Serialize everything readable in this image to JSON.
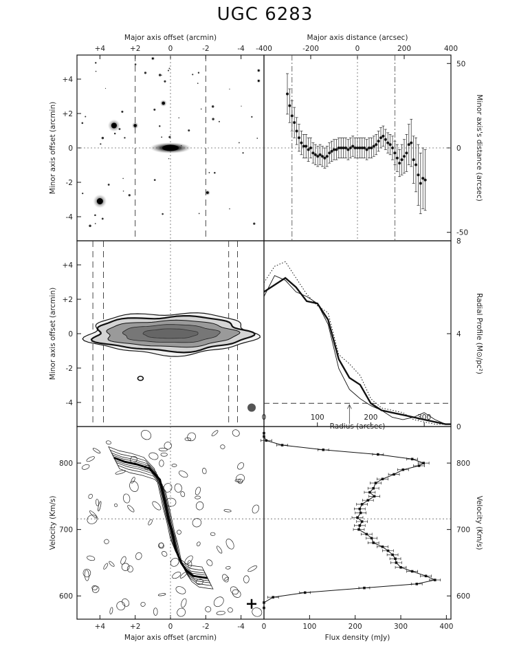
{
  "title": "UGC 6283",
  "chart_data": [
    {
      "id": "optical",
      "type": "image",
      "xlabel_top": "Major axis offset (arcmin)",
      "ylabel_left": "Minor axis offset (arcmin)",
      "xticks": [
        "+4",
        "+2",
        "0",
        "-2",
        "-4"
      ],
      "yticks": [
        "+4",
        "+2",
        "0",
        "-2",
        "-4"
      ],
      "xlim": [
        5.3,
        -5.3
      ],
      "ylim": [
        -5.4,
        5.4
      ]
    },
    {
      "id": "minor-axis-distance",
      "type": "scatter",
      "xlabel_top": "Major axis distance (arcsec)",
      "ylabel_right": "Minor axis's distance (arcsec)",
      "xticks": [
        "-400",
        "-200",
        "0",
        "200",
        "400"
      ],
      "yticks": [
        "50",
        "0",
        "-50"
      ],
      "xlim": [
        -400,
        400
      ],
      "ylim": [
        -55,
        55
      ],
      "x": [
        -300,
        -290,
        -280,
        -270,
        -260,
        -250,
        -240,
        -230,
        -220,
        -210,
        -200,
        -190,
        -180,
        -170,
        -160,
        -150,
        -140,
        -130,
        -120,
        -110,
        -100,
        -90,
        -80,
        -70,
        -60,
        -50,
        -40,
        -30,
        -20,
        -10,
        0,
        10,
        20,
        30,
        40,
        50,
        60,
        70,
        80,
        90,
        100,
        110,
        120,
        130,
        140,
        150,
        160,
        170,
        180,
        190,
        200,
        210,
        220,
        230,
        240,
        250,
        260,
        270,
        280,
        290
      ],
      "y": [
        32,
        25,
        19,
        15,
        10,
        6,
        3,
        1,
        1,
        -1,
        0,
        -3,
        -4,
        -5,
        -4,
        -5,
        -6,
        -5,
        -3,
        -2,
        -1,
        -1,
        0,
        0,
        0,
        0,
        -1,
        0,
        1,
        0,
        0,
        0,
        0,
        0,
        -1,
        0,
        0,
        1,
        2,
        4,
        6,
        7,
        5,
        3,
        2,
        0,
        -3,
        -6,
        -9,
        -7,
        -5,
        -3,
        2,
        3,
        -7,
        -10,
        -16,
        -21,
        -18,
        -19
      ],
      "err": [
        12,
        10,
        9,
        9,
        8,
        8,
        7,
        7,
        7,
        7,
        6,
        6,
        6,
        6,
        6,
        6,
        6,
        6,
        6,
        6,
        6,
        6,
        6,
        6,
        6,
        6,
        6,
        6,
        6,
        6,
        6,
        6,
        6,
        6,
        6,
        6,
        6,
        6,
        6,
        6,
        6,
        6,
        6,
        6,
        6,
        7,
        7,
        8,
        8,
        9,
        10,
        11,
        12,
        14,
        14,
        16,
        18,
        18,
        18,
        18
      ],
      "vlines_dotdash": [
        -280,
        160
      ],
      "vline_dotted": 0,
      "hline_dotted": 0
    },
    {
      "id": "hi-total-intensity",
      "type": "contour",
      "ylabel_left": "Minor axis offset (arcmin)",
      "yticks": [
        "+4",
        "+2",
        "0",
        "-2",
        "-4"
      ],
      "xlim": [
        5.3,
        -5.3
      ],
      "ylim": [
        -5.4,
        5.4
      ]
    },
    {
      "id": "radial-profile",
      "type": "line",
      "xlabel": "Radius (arcsec)",
      "ylabel_right": "Radial Profile (M⊙/pc²)",
      "xticks": [
        "0",
        "100",
        "200",
        "300"
      ],
      "yticks": [
        "8",
        "4",
        "0"
      ],
      "xlim": [
        0,
        350
      ],
      "ylim": [
        0,
        8
      ],
      "x": [
        0,
        20,
        40,
        60,
        80,
        100,
        120,
        140,
        160,
        180,
        200,
        220,
        240,
        260,
        280,
        300,
        320,
        340,
        350
      ],
      "series": [
        {
          "name": "",
          "style": "bold",
          "values": [
            5.8,
            6.1,
            6.4,
            6.0,
            5.4,
            5.3,
            4.6,
            2.9,
            2.1,
            1.8,
            1.0,
            0.7,
            0.6,
            0.5,
            0.4,
            0.3,
            0.2,
            0.1,
            0.1
          ]
        },
        {
          "name": "",
          "style": "thin",
          "values": [
            5.6,
            6.5,
            6.3,
            5.8,
            5.6,
            5.3,
            4.4,
            2.5,
            1.6,
            1.2,
            0.9,
            0.7,
            0.4,
            0.3,
            0.4,
            0.6,
            0.3,
            0.1,
            0.1
          ]
        },
        {
          "name": "",
          "style": "dotted",
          "values": [
            6.2,
            6.9,
            7.1,
            6.4,
            5.7,
            5.2,
            4.9,
            3.1,
            2.7,
            2.2,
            1.2,
            0.8,
            0.7,
            0.6,
            0.3,
            0.2,
            0.1,
            0.1,
            0.1
          ]
        }
      ],
      "hline_dashed": 1.0,
      "arrow_x": 160
    },
    {
      "id": "position-velocity",
      "type": "contour",
      "xlabel": "Major axis offset (arcmin)",
      "ylabel_left": "Velocity (Km/s)",
      "xticks": [
        "+4",
        "+2",
        "0",
        "-2",
        "-4"
      ],
      "yticks": [
        "800",
        "700",
        "600"
      ],
      "xlim": [
        5.3,
        -5.3
      ],
      "ylim": [
        565,
        855
      ],
      "rotation_x": [
        3.2,
        2.6,
        1.9,
        1.2,
        0.6,
        0.3,
        0.1,
        -0.1,
        -0.3,
        -0.6,
        -0.9,
        -1.3,
        -1.8,
        -2.1
      ],
      "rotation_v": [
        808,
        802,
        798,
        792,
        775,
        740,
        715,
        695,
        670,
        650,
        638,
        630,
        628,
        627
      ],
      "hline_dotted": 716
    },
    {
      "id": "global-profile",
      "type": "line",
      "xlabel": "Flux density (mJy)",
      "ylabel_right": "Velocity (Km/s)",
      "xticks": [
        "0",
        "100",
        "200",
        "300",
        "400"
      ],
      "yticks": [
        "800",
        "700",
        "600"
      ],
      "xlim": [
        0,
        410
      ],
      "ylim": [
        565,
        855
      ],
      "v": [
        845,
        840,
        834,
        827,
        820,
        813,
        806,
        800,
        796,
        790,
        783,
        776,
        770,
        762,
        756,
        750,
        744,
        738,
        731,
        725,
        718,
        712,
        706,
        700,
        693,
        687,
        680,
        674,
        668,
        662,
        656,
        650,
        643,
        637,
        630,
        624,
        618,
        612,
        605,
        598,
        590,
        582
      ],
      "flux": [
        0,
        0,
        5,
        40,
        130,
        250,
        325,
        350,
        340,
        305,
        285,
        260,
        245,
        240,
        232,
        242,
        228,
        215,
        210,
        212,
        205,
        215,
        210,
        208,
        225,
        236,
        240,
        260,
        272,
        282,
        288,
        290,
        300,
        325,
        355,
        375,
        335,
        220,
        90,
        20,
        0,
        0
      ],
      "err": 12,
      "hline_dotted": 716
    }
  ]
}
